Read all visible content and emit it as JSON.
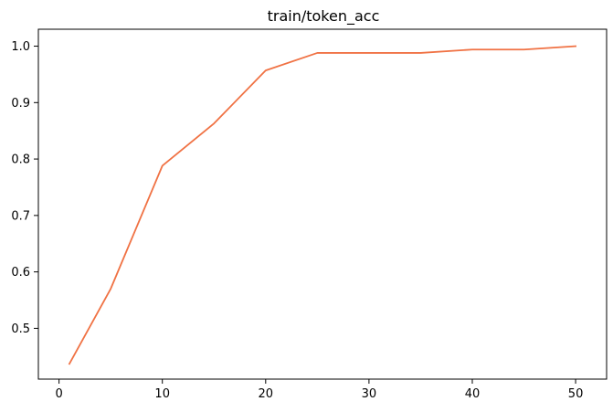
{
  "chart_data": {
    "type": "line",
    "title": "train/token_acc",
    "xlabel": "",
    "ylabel": "",
    "xlim": [
      -2,
      53
    ],
    "ylim": [
      0.41,
      1.03
    ],
    "xticks": [
      0,
      10,
      20,
      30,
      40,
      50
    ],
    "yticks": [
      0.5,
      0.6,
      0.7,
      0.8,
      0.9,
      1.0
    ],
    "xtick_labels": [
      "0",
      "10",
      "20",
      "30",
      "40",
      "50"
    ],
    "ytick_labels": [
      "0.5",
      "0.6",
      "0.7",
      "0.8",
      "0.9",
      "1.0"
    ],
    "grid": false,
    "series": [
      {
        "color": "#f07244",
        "x": [
          1,
          5,
          10,
          15,
          20,
          25,
          30,
          35,
          40,
          45,
          50
        ],
        "y": [
          0.437,
          0.57,
          0.788,
          0.863,
          0.957,
          0.988,
          0.988,
          0.988,
          0.994,
          0.994,
          1.0
        ]
      }
    ]
  }
}
